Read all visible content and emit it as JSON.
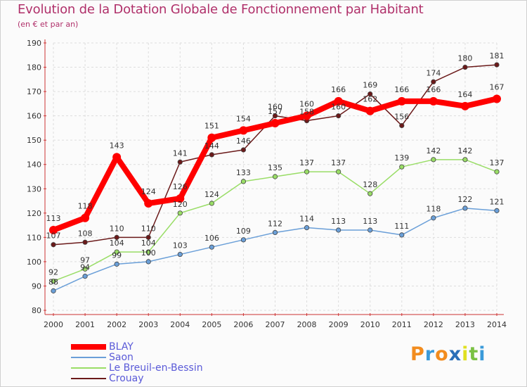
{
  "title": "Evolution de la Dotation Globale de Fonctionnement par Habitant",
  "subtitle": "(en € et par an)",
  "logo": {
    "text": "Proxiti",
    "colors": [
      "#f28c1e",
      "#3a9ad9",
      "#f28c1e",
      "#2a6fb8",
      "#e0e020",
      "#7ac143",
      "#3a9ad9"
    ]
  },
  "chart_data": {
    "type": "line",
    "title": "Evolution de la Dotation Globale de Fonctionnement par Habitant",
    "subtitle": "(en € et par an)",
    "xlabel": "",
    "ylabel": "",
    "x": [
      "2000",
      "2001",
      "2002",
      "2003",
      "2004",
      "2005",
      "2006",
      "2007",
      "2008",
      "2009",
      "2010",
      "2011",
      "2012",
      "2013",
      "2014"
    ],
    "ylim": [
      80,
      190
    ],
    "yticks": [
      80,
      90,
      100,
      110,
      120,
      130,
      140,
      150,
      160,
      170,
      180,
      190
    ],
    "grid": true,
    "legend_position": "bottom-left",
    "series": [
      {
        "name": "Crouay",
        "color": "#6b1a1a",
        "values": [
          107,
          108,
          110,
          110,
          141,
          144,
          146,
          160,
          158,
          160,
          169,
          156,
          174,
          180,
          181
        ]
      },
      {
        "name": "Le Breuil-en-Bessin",
        "color": "#99dd66",
        "values": [
          92,
          97,
          104,
          104,
          120,
          124,
          133,
          135,
          137,
          137,
          128,
          139,
          142,
          142,
          137
        ]
      },
      {
        "name": "Saon",
        "color": "#6a9fd8",
        "values": [
          88,
          94,
          99,
          100,
          103,
          106,
          109,
          112,
          114,
          113,
          113,
          111,
          118,
          122,
          121
        ]
      },
      {
        "name": "BLAY",
        "color": "#ff0000",
        "values": [
          113,
          118,
          143,
          124,
          126,
          151,
          154,
          157,
          160,
          166,
          162,
          166,
          166,
          164,
          167
        ]
      }
    ]
  }
}
